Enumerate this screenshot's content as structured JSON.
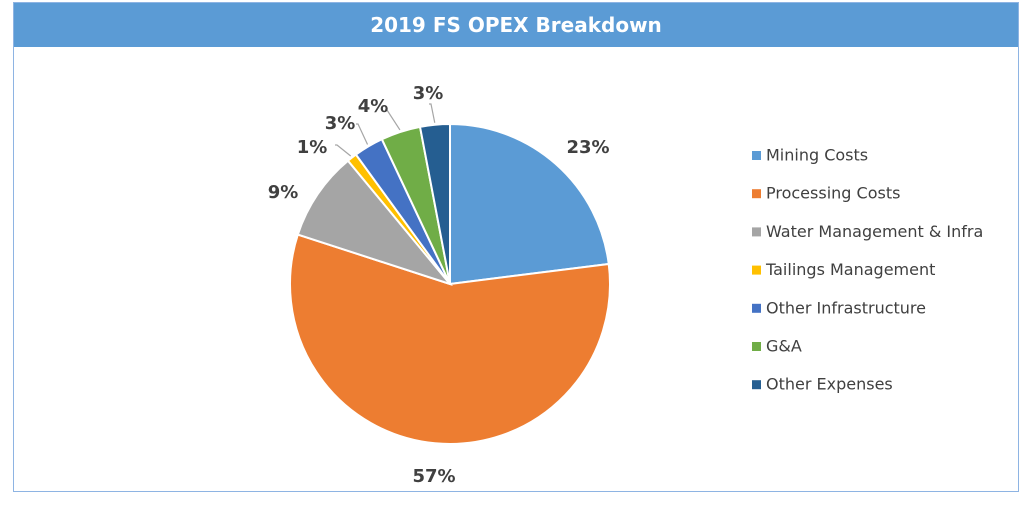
{
  "chart_data": {
    "type": "pie",
    "title": "2019 FS OPEX Breakdown",
    "categories": [
      "Mining Costs",
      "Processing Costs",
      "Water Management & Infra",
      "Tailings Management",
      "Other Infrastructure",
      "G&A",
      "Other Expenses"
    ],
    "values": [
      23,
      57,
      9,
      1,
      3,
      4,
      3
    ],
    "labels": [
      "23%",
      "57%",
      "9%",
      "1%",
      "3%",
      "4%",
      "3%"
    ],
    "colors": [
      "#5b9bd5",
      "#ed7d31",
      "#a5a5a5",
      "#ffc000",
      "#4472c4",
      "#70ad47",
      "#255e91"
    ],
    "legend": "right",
    "start": "12 o'clock",
    "direction": "clockwise"
  }
}
